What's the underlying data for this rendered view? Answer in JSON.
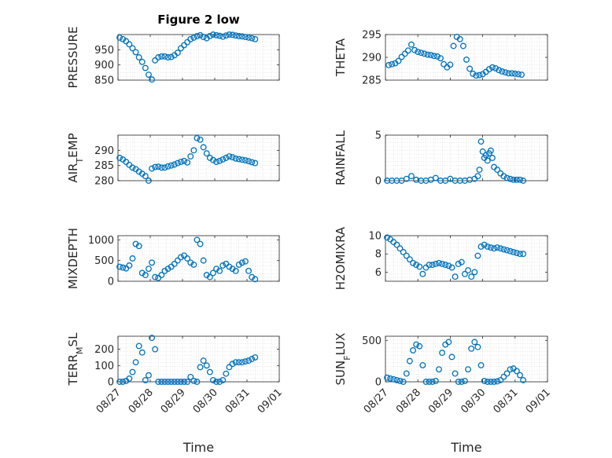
{
  "figure": {
    "title": "Figure 2 low",
    "xlabel": "Time"
  },
  "chart_data": [
    {
      "type": "scatter",
      "ylabel": "PRESSURE",
      "ylim": [
        850,
        1000
      ],
      "yticks": [
        850,
        900,
        950
      ],
      "xlim": [
        0,
        5
      ],
      "xticks": [
        0,
        1,
        2,
        3,
        4,
        5
      ],
      "xtick_labels": [
        "08/27",
        "08/28",
        "08/29",
        "08/30",
        "08/31",
        "09/01"
      ],
      "title": "Figure 2 low",
      "x": [
        0.05,
        0.15,
        0.25,
        0.35,
        0.45,
        0.55,
        0.65,
        0.75,
        0.85,
        0.95,
        1.05,
        1.15,
        1.25,
        1.35,
        1.45,
        1.55,
        1.65,
        1.75,
        1.85,
        1.95,
        2.05,
        2.15,
        2.25,
        2.35,
        2.45,
        2.55,
        2.65,
        2.75,
        2.85,
        2.95,
        3.05,
        3.15,
        3.25,
        3.35,
        3.45,
        3.55,
        3.65,
        3.75,
        3.85,
        3.95,
        4.05,
        4.15,
        4.25
      ],
      "y": [
        990,
        985,
        978,
        968,
        955,
        942,
        925,
        910,
        890,
        868,
        852,
        915,
        925,
        928,
        928,
        925,
        926,
        932,
        940,
        955,
        965,
        975,
        985,
        990,
        995,
        998,
        992,
        988,
        995,
        1000,
        998,
        996,
        993,
        997,
        1000,
        999,
        997,
        995,
        994,
        992,
        990,
        988,
        985
      ]
    },
    {
      "type": "scatter",
      "ylabel": "THETA",
      "ylim": [
        285,
        295
      ],
      "yticks": [
        285,
        290,
        295
      ],
      "xlim": [
        0,
        5
      ],
      "xticks": [
        0,
        1,
        2,
        3,
        4,
        5
      ],
      "xtick_labels": [
        "08/27",
        "08/28",
        "08/29",
        "08/30",
        "08/31",
        "09/01"
      ],
      "x": [
        0.1,
        0.2,
        0.3,
        0.4,
        0.5,
        0.6,
        0.7,
        0.8,
        0.9,
        1.0,
        1.1,
        1.2,
        1.3,
        1.4,
        1.5,
        1.6,
        1.7,
        1.8,
        1.9,
        2.0,
        2.1,
        2.2,
        2.3,
        2.4,
        2.5,
        2.6,
        2.7,
        2.8,
        2.9,
        3.0,
        3.1,
        3.2,
        3.3,
        3.4,
        3.5,
        3.6,
        3.7,
        3.8,
        3.9,
        4.0,
        4.1,
        4.2
      ],
      "y": [
        288.3,
        288.5,
        288.7,
        289.2,
        290.1,
        290.8,
        291.5,
        292.8,
        291.6,
        291.2,
        291.0,
        290.8,
        290.6,
        290.5,
        290.3,
        290.2,
        289.8,
        288.5,
        287.8,
        288.4,
        292.5,
        294.5,
        294.0,
        292.5,
        289.5,
        287.5,
        286.4,
        286.0,
        286.1,
        286.3,
        286.8,
        287.4,
        287.8,
        287.6,
        287.2,
        286.9,
        286.7,
        286.5,
        286.5,
        286.4,
        286.3,
        286.2
      ]
    },
    {
      "type": "scatter",
      "ylabel": "AIR_TEMP",
      "ylim": [
        280,
        295
      ],
      "yticks": [
        280,
        285,
        290
      ],
      "xlim": [
        0,
        5
      ],
      "xticks": [
        0,
        1,
        2,
        3,
        4,
        5
      ],
      "xtick_labels": [
        "08/27",
        "08/28",
        "08/29",
        "08/30",
        "08/31",
        "09/01"
      ],
      "x": [
        0.05,
        0.15,
        0.25,
        0.35,
        0.45,
        0.55,
        0.65,
        0.75,
        0.85,
        0.95,
        1.05,
        1.15,
        1.25,
        1.35,
        1.45,
        1.55,
        1.65,
        1.75,
        1.85,
        1.95,
        2.05,
        2.15,
        2.25,
        2.35,
        2.45,
        2.55,
        2.65,
        2.75,
        2.85,
        2.95,
        3.05,
        3.15,
        3.25,
        3.35,
        3.45,
        3.55,
        3.65,
        3.75,
        3.85,
        3.95,
        4.05,
        4.15,
        4.25
      ],
      "y": [
        287.5,
        287,
        286.2,
        285.2,
        284.3,
        283.8,
        283.0,
        282.3,
        281.5,
        280.0,
        284,
        284.5,
        284.6,
        284.3,
        284.3,
        284.7,
        285,
        285.3,
        285.8,
        286.2,
        286.5,
        286,
        288,
        290,
        294,
        293.5,
        291,
        289,
        287.5,
        286.8,
        286.2,
        286.5,
        287,
        287.5,
        288,
        287.7,
        287.3,
        287.1,
        286.9,
        286.7,
        286.4,
        286.1,
        285.8
      ]
    },
    {
      "type": "scatter",
      "ylabel": "RAINFALL",
      "ylim": [
        0,
        5
      ],
      "yticks": [
        0,
        5
      ],
      "xlim": [
        0,
        5
      ],
      "xticks": [
        0,
        1,
        2,
        3,
        4,
        5
      ],
      "xtick_labels": [
        "08/27",
        "08/28",
        "08/29",
        "08/30",
        "08/31",
        "09/01"
      ],
      "x": [
        0.05,
        0.2,
        0.35,
        0.5,
        0.65,
        0.8,
        0.95,
        1.1,
        1.25,
        1.4,
        1.55,
        1.7,
        1.85,
        2.0,
        2.15,
        2.3,
        2.45,
        2.6,
        2.75,
        2.85,
        2.9,
        2.95,
        3.0,
        3.05,
        3.1,
        3.15,
        3.2,
        3.25,
        3.3,
        3.35,
        3.45,
        3.55,
        3.65,
        3.75,
        3.85,
        3.95,
        4.05,
        4.15,
        4.25
      ],
      "y": [
        0,
        0,
        0,
        0,
        0.2,
        0.5,
        0.1,
        0,
        0,
        0.1,
        0.3,
        0,
        0,
        0.2,
        0,
        0,
        0,
        0.1,
        0.2,
        0.5,
        1.2,
        4.3,
        3.2,
        2.5,
        2.8,
        2.2,
        3.0,
        3.3,
        2.5,
        1.5,
        1.2,
        0.8,
        0.5,
        0.3,
        0.2,
        0.1,
        0.1,
        0.1,
        0
      ]
    },
    {
      "type": "scatter",
      "ylabel": "MIXDEPTH",
      "ylim": [
        0,
        1100
      ],
      "yticks": [
        0,
        500,
        1000
      ],
      "xlim": [
        0,
        5
      ],
      "xticks": [
        0,
        1,
        2,
        3,
        4,
        5
      ],
      "xtick_labels": [
        "08/27",
        "08/28",
        "08/29",
        "08/30",
        "08/31",
        "09/01"
      ],
      "x": [
        0.05,
        0.15,
        0.25,
        0.35,
        0.45,
        0.55,
        0.65,
        0.75,
        0.85,
        0.95,
        1.05,
        1.15,
        1.25,
        1.35,
        1.45,
        1.55,
        1.65,
        1.75,
        1.85,
        1.95,
        2.05,
        2.15,
        2.25,
        2.35,
        2.45,
        2.55,
        2.65,
        2.75,
        2.85,
        2.95,
        3.05,
        3.15,
        3.25,
        3.35,
        3.45,
        3.55,
        3.65,
        3.75,
        3.85,
        3.95,
        4.05,
        4.15,
        4.25
      ],
      "y": [
        350,
        330,
        310,
        380,
        550,
        900,
        850,
        200,
        150,
        300,
        450,
        100,
        80,
        150,
        250,
        300,
        350,
        420,
        500,
        580,
        620,
        550,
        450,
        400,
        1000,
        900,
        500,
        150,
        100,
        200,
        300,
        250,
        380,
        420,
        350,
        300,
        250,
        400,
        450,
        480,
        250,
        100,
        50
      ]
    },
    {
      "type": "scatter",
      "ylabel": "H2OMIXRA",
      "ylim": [
        5,
        10
      ],
      "yticks": [
        6,
        8,
        10
      ],
      "xlim": [
        0,
        5
      ],
      "xticks": [
        0,
        1,
        2,
        3,
        4,
        5
      ],
      "xtick_labels": [
        "08/27",
        "08/28",
        "08/29",
        "08/30",
        "08/31",
        "09/01"
      ],
      "x": [
        0.05,
        0.15,
        0.25,
        0.35,
        0.45,
        0.55,
        0.65,
        0.75,
        0.85,
        0.95,
        1.05,
        1.15,
        1.25,
        1.35,
        1.45,
        1.55,
        1.65,
        1.75,
        1.85,
        1.95,
        2.05,
        2.15,
        2.25,
        2.35,
        2.45,
        2.55,
        2.65,
        2.75,
        2.85,
        2.95,
        3.05,
        3.15,
        3.25,
        3.35,
        3.45,
        3.55,
        3.65,
        3.75,
        3.85,
        3.95,
        4.05,
        4.15,
        4.25
      ],
      "y": [
        9.8,
        9.6,
        9.3,
        9.0,
        8.6,
        8.2,
        7.8,
        7.4,
        7.0,
        6.8,
        6.6,
        5.8,
        6.5,
        6.8,
        6.8,
        6.9,
        7.0,
        6.9,
        6.8,
        6.7,
        6.5,
        5.5,
        6.9,
        7.1,
        5.8,
        6.2,
        5.5,
        6.0,
        7.8,
        8.8,
        9.0,
        8.8,
        8.7,
        8.6,
        8.7,
        8.6,
        8.5,
        8.4,
        8.3,
        8.2,
        8.1,
        8.0,
        8.0
      ]
    },
    {
      "type": "scatter",
      "ylabel": "TERR_MSL",
      "ylim": [
        0,
        280
      ],
      "yticks": [
        0,
        100,
        200
      ],
      "xlim": [
        0,
        5
      ],
      "xticks": [
        0,
        1,
        2,
        3,
        4,
        5
      ],
      "xtick_labels": [
        "08/27",
        "08/28",
        "08/29",
        "08/30",
        "08/31",
        "09/01"
      ],
      "x": [
        0.05,
        0.15,
        0.25,
        0.35,
        0.45,
        0.55,
        0.65,
        0.75,
        0.85,
        0.95,
        1.05,
        1.15,
        1.25,
        1.35,
        1.45,
        1.55,
        1.65,
        1.75,
        1.85,
        1.95,
        2.05,
        2.15,
        2.25,
        2.35,
        2.45,
        2.55,
        2.65,
        2.75,
        2.85,
        2.95,
        3.05,
        3.15,
        3.25,
        3.35,
        3.45,
        3.55,
        3.65,
        3.75,
        3.85,
        3.95,
        4.05,
        4.15,
        4.25
      ],
      "y": [
        0,
        0,
        5,
        20,
        60,
        120,
        220,
        180,
        10,
        40,
        270,
        200,
        0,
        0,
        0,
        0,
        0,
        0,
        0,
        0,
        0,
        0,
        30,
        5,
        0,
        90,
        130,
        100,
        60,
        10,
        0,
        0,
        10,
        50,
        90,
        110,
        120,
        120,
        120,
        125,
        130,
        140,
        150
      ]
    },
    {
      "type": "scatter",
      "ylabel": "SUN_FLUX",
      "ylim": [
        0,
        550
      ],
      "yticks": [
        0,
        500
      ],
      "xlim": [
        0,
        5
      ],
      "xticks": [
        0,
        1,
        2,
        3,
        4,
        5
      ],
      "xtick_labels": [
        "08/27",
        "08/28",
        "08/29",
        "08/30",
        "08/31",
        "09/01"
      ],
      "x": [
        0.05,
        0.15,
        0.25,
        0.35,
        0.45,
        0.55,
        0.65,
        0.75,
        0.85,
        0.95,
        1.05,
        1.15,
        1.25,
        1.35,
        1.45,
        1.55,
        1.65,
        1.75,
        1.85,
        1.95,
        2.05,
        2.15,
        2.25,
        2.35,
        2.45,
        2.55,
        2.65,
        2.75,
        2.85,
        2.95,
        3.05,
        3.15,
        3.25,
        3.35,
        3.45,
        3.55,
        3.65,
        3.75,
        3.85,
        3.95,
        4.05,
        4.15,
        4.25
      ],
      "y": [
        50,
        40,
        30,
        20,
        10,
        0,
        100,
        250,
        380,
        450,
        430,
        200,
        0,
        0,
        0,
        10,
        150,
        350,
        450,
        480,
        300,
        100,
        0,
        0,
        10,
        150,
        400,
        480,
        420,
        200,
        10,
        0,
        0,
        0,
        5,
        20,
        60,
        100,
        150,
        160,
        130,
        80,
        20
      ]
    }
  ]
}
